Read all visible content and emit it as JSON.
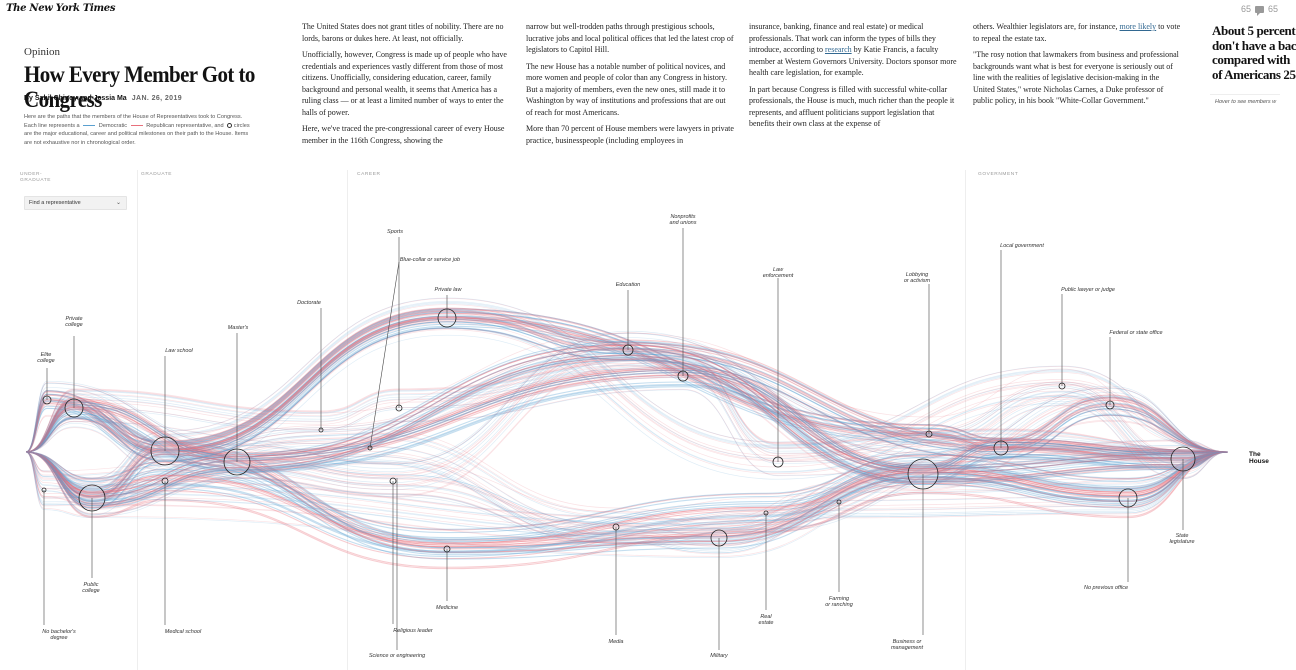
{
  "masthead": "The New York Times",
  "comments": {
    "count_a": "65",
    "count_b": "65"
  },
  "article": {
    "kicker": "Opinion",
    "headline": "How Every Member Got to Congress",
    "authors": "By Sahil Chinoy and Jessia Ma",
    "date": "JAN. 26, 2019",
    "intro_a": "Here are the paths that the members of the House of Representatives took to Congress. Each line represents a",
    "intro_dem": "Democratic",
    "intro_b": "Republican representative, and",
    "intro_c": "circles are the major educational, career and political milestones on their path to the House. Items are not exhaustive nor in chronological order."
  },
  "columns": {
    "col1": [
      "The United States does not grant titles of nobility. There are no lords, barons or dukes here. At least, not officially.",
      "Unofficially, however, Congress is made up of people who have credentials and experiences vastly different from those of most citizens. Unofficially, considering education, career, family background and personal wealth, it seems that America has a ruling class — or at least a limited number of ways to enter the halls of power.",
      "Here, we've traced the pre-congressional career of every House member in the 116th Congress, showing the"
    ],
    "col2": [
      "narrow but well-trodden paths through prestigious schools, lucrative jobs and local political offices that led the latest crop of legislators to Capitol Hill.",
      "The new House has a notable number of political novices, and more women and people of color than any Congress in history. But a majority of members, even the new ones, still made it to Washington by way of institutions and professions that are out of reach for most Americans.",
      "More than 70 percent of House members were lawyers in private practice, businesspeople (including employees in"
    ],
    "col3_a": "insurance, banking, finance and real estate) or medical professionals. That work can inform the types of bills they introduce, according to",
    "col3_link": "research",
    "col3_b": "by Katie Francis, a faculty member at Western Governors University. Doctors sponsor more health care legislation, for example.",
    "col3_p2": "In part because Congress is filled with successful white-collar professionals, the House is much, much richer than the people it represents, and affluent politicians support legislation that benefits their own class at the expense of",
    "col4_a": "others. Wealthier legislators are, for instance,",
    "col4_link": "more likely",
    "col4_b": "to vote to repeal the estate tax.",
    "col4_p2": "\"The rosy notion that lawmakers from business and professional backgrounds want what is best for everyone is seriously out of line with the realities of legislative decision-making in the United States,\" wrote Nicholas Carnes, a Duke professor of public policy, in his book \"White-Collar Government.\""
  },
  "side": {
    "line1": "About 5 percent",
    "line2": "don't have a bac",
    "line3": "compared with",
    "line4": "of Americans 25",
    "note": "Hover to see members w"
  },
  "sections": {
    "undergrad": "UNDER-\nGRADUATE",
    "graduate": "GRADUATE",
    "career": "CAREER",
    "government": "GOVERNMENT"
  },
  "finder": {
    "label": "Find a representative",
    "chevron": "⌄"
  },
  "nodes": {
    "elite_college": "Elite\ncollege",
    "private_college": "Private\ncollege",
    "public_college": "Public\ncollege",
    "no_bachelors": "No bachelor's\ndegree",
    "law_school": "Law school",
    "masters": "Master's",
    "medical_school": "Medical school",
    "doctorate": "Doctorate",
    "sports": "Sports",
    "blue_collar": "Blue-collar or service job",
    "religious": "Religious leader",
    "science": "Science or engineering",
    "private_law": "Private law",
    "medicine": "Medicine",
    "education": "Education",
    "nonprofits": "Nonprofits\nand unions",
    "media": "Media",
    "military": "Military",
    "law_enforcement": "Law\nenforcement",
    "real_estate": "Real\nestate",
    "farming": "Farming\nor ranching",
    "lobbying": "Lobbying\nor activism",
    "business": "Business or\nmanagement",
    "local_government": "Local government",
    "public_lawyer": "Public lawyer or judge",
    "federal_state": "Federal or state office",
    "state_legislature": "State\nlegislature",
    "no_previous": "No previous office",
    "the_house": "The\nHouse"
  },
  "colors": {
    "democrat": "#5aa0d0",
    "republican": "#e8707c"
  }
}
